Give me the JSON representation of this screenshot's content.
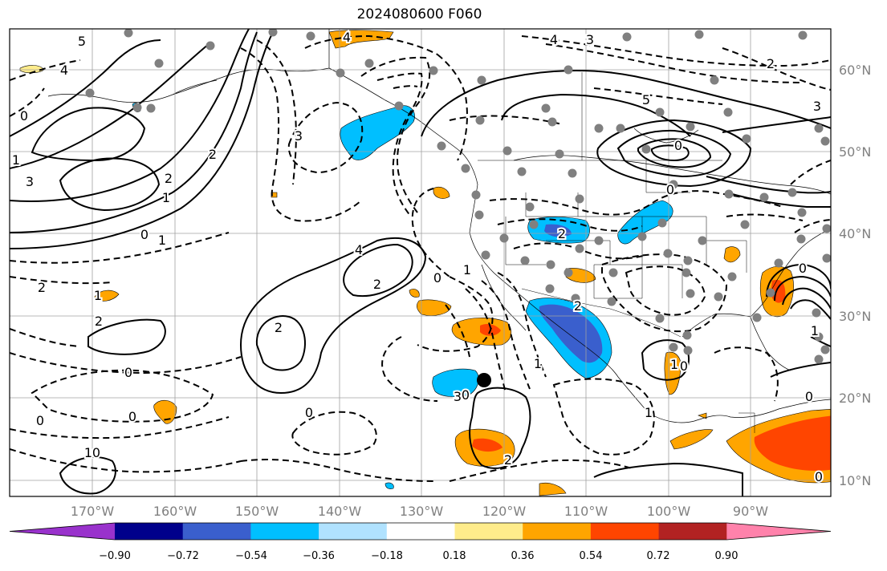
{
  "title": "2024080600 F060",
  "lat_labels": [
    "60°N",
    "50°N",
    "40°N",
    "30°N",
    "20°N",
    "10°N"
  ],
  "lon_labels": [
    "170°W",
    "160°W",
    "150°W",
    "140°W",
    "130°W",
    "120°W",
    "110°W",
    "100°W",
    "90°W"
  ],
  "colorbar": {
    "colors": [
      "#9932cc",
      "#00008b",
      "#3a5fcd",
      "#00bfff",
      "#b0e2ff",
      "#ffffff",
      "#ffec8b",
      "#ffa500",
      "#ff4500",
      "#b22222",
      "#ff82ab"
    ],
    "tick_labels": [
      "−0.90",
      "−0.72",
      "−0.54",
      "−0.36",
      "−0.18",
      "0.18",
      "0.36",
      "0.54",
      "0.72",
      "0.90"
    ]
  },
  "contour_labels": [
    "5",
    "4",
    "0",
    "1",
    "3",
    "2",
    "1",
    "0",
    "1",
    "2",
    "3",
    "2",
    "0",
    "1",
    "4",
    "4",
    "3",
    "5",
    "0",
    "2",
    "2",
    "1",
    "2",
    "0",
    "0",
    "2",
    "1",
    "2",
    "0",
    "0",
    "2",
    "1",
    "0",
    "1",
    "0",
    "1",
    "0",
    "4",
    "3",
    "3",
    "0",
    "0",
    "1",
    "0",
    "0",
    "2"
  ],
  "marker": "station-dot"
}
